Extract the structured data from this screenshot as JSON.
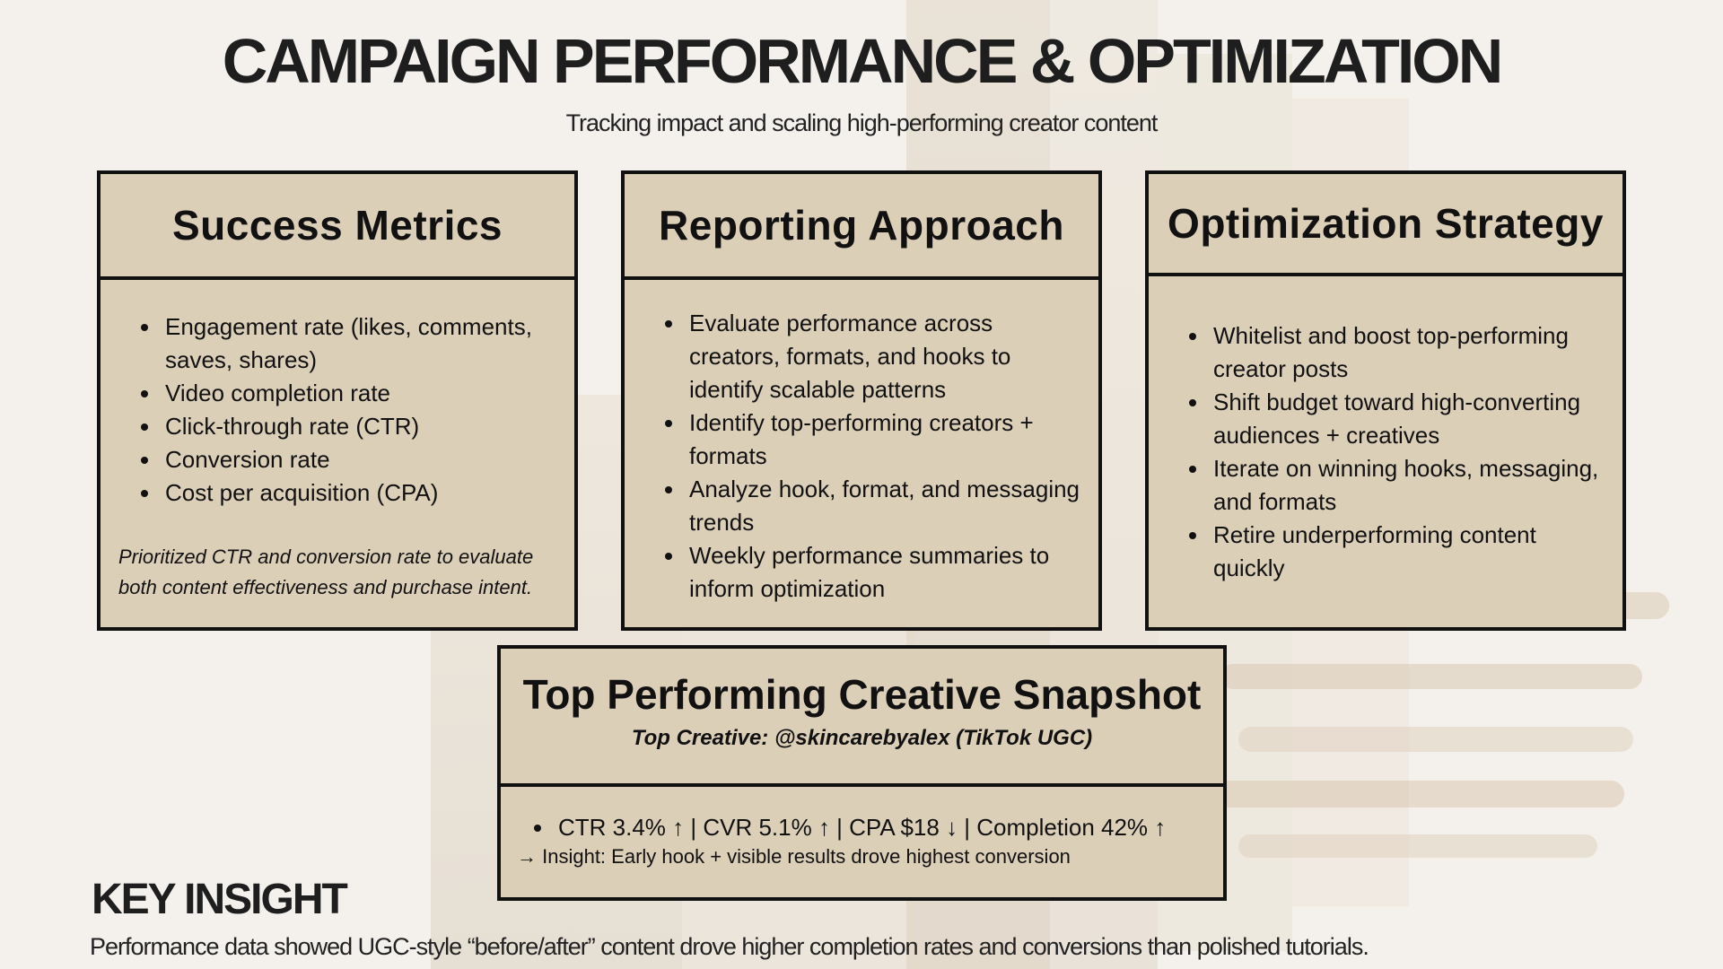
{
  "header": {
    "title": "CAMPAIGN PERFORMANCE & OPTIMIZATION",
    "subtitle": "Tracking impact and scaling high-performing creator content"
  },
  "cards": {
    "success": {
      "title": "Success Metrics",
      "items": [
        "Engagement rate (likes, comments, saves, shares)",
        "Video completion rate",
        "Click-through rate (CTR)",
        "Conversion rate",
        "Cost per acquisition (CPA)"
      ],
      "note": "Prioritized CTR and conversion rate to evaluate both content effectiveness and purchase intent."
    },
    "reporting": {
      "title": "Reporting Approach",
      "items": [
        "Evaluate performance across creators, formats, and hooks to identify scalable patterns",
        "Identify top-performing creators + formats",
        "Analyze hook, format, and messaging trends",
        "Weekly performance summaries to inform optimization"
      ]
    },
    "optimization": {
      "title": "Optimization Strategy",
      "items": [
        "Whitelist and boost top-performing creator posts",
        "Shift budget toward high-converting audiences + creatives",
        "Iterate on winning hooks, messaging, and formats",
        "Retire underperforming content quickly"
      ]
    }
  },
  "snapshot": {
    "title": "Top Performing Creative Snapshot",
    "subtitle": "Top Creative: @skincarebyalex (TikTok UGC)",
    "metrics": "CTR 3.4% ↑ | CVR 5.1% ↑ | CPA $18 ↓ | Completion 42% ↑",
    "insight": "→ Insight: Early hook + visible results drove highest conversion"
  },
  "key_insight": {
    "title": "KEY INSIGHT",
    "text": "Performance data showed UGC-style “before/after” content drove higher completion rates and conversions than polished tutorials."
  }
}
